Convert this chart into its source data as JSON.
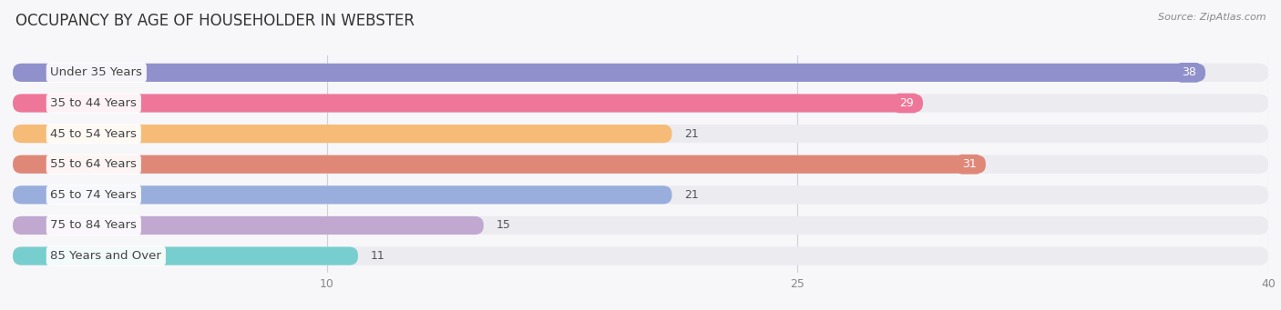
{
  "title": "OCCUPANCY BY AGE OF HOUSEHOLDER IN WEBSTER",
  "source": "Source: ZipAtlas.com",
  "categories": [
    "Under 35 Years",
    "35 to 44 Years",
    "45 to 54 Years",
    "55 to 64 Years",
    "65 to 74 Years",
    "75 to 84 Years",
    "85 Years and Over"
  ],
  "values": [
    38,
    29,
    21,
    31,
    21,
    15,
    11
  ],
  "bar_colors": [
    "#9090cc",
    "#ee7799",
    "#f5bb77",
    "#e08878",
    "#99aedd",
    "#c0a8d0",
    "#78cece"
  ],
  "bar_bg_color": "#ebebf0",
  "xlim": [
    0,
    40
  ],
  "xticks": [
    10,
    25,
    40
  ],
  "title_fontsize": 12,
  "label_fontsize": 9.5,
  "value_fontsize": 9,
  "background_color": "#f7f7fa",
  "value_inside_threshold": 25
}
